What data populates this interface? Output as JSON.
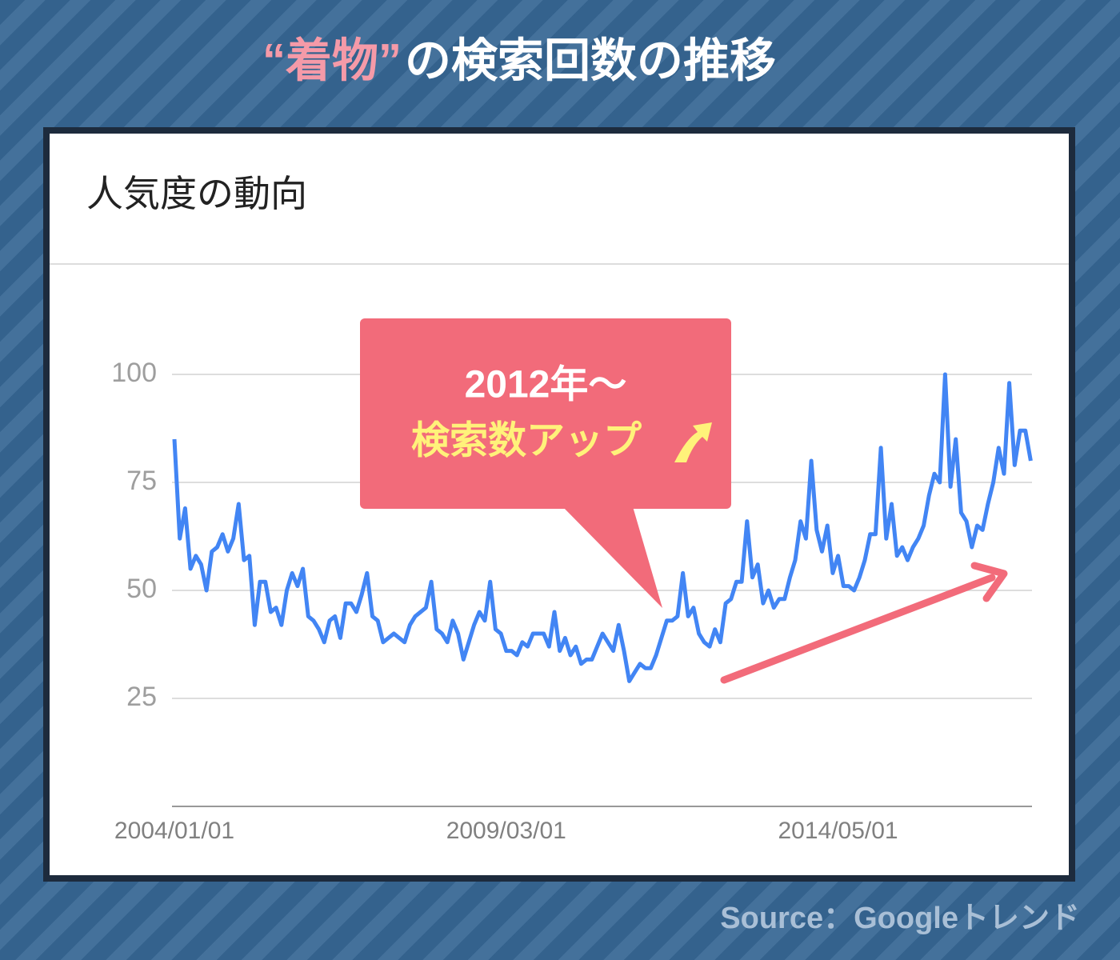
{
  "chart_data": {
    "type": "line",
    "title_highlight": "“着物”",
    "title": "の検索回数の推移",
    "panel_title": "人気度の動向",
    "annotations": [
      "2012年〜",
      "検索数アップ"
    ],
    "source": "Source：Googleトレンド",
    "color": "#4285f4",
    "ylim": [
      0,
      100
    ],
    "yticks": [
      25,
      50,
      75,
      100
    ],
    "grid": true,
    "xticks": [
      "2004/01/01",
      "2009/03/01",
      "2014/05/01"
    ],
    "x": [
      "2004/01/01",
      "2004/02/01",
      "2004/03/01",
      "2004/04/01",
      "2004/05/01",
      "2004/06/01",
      "2004/07/01",
      "2004/08/01",
      "2004/09/01",
      "2004/10/01",
      "2004/11/01",
      "2004/12/01",
      "2005/01/01",
      "2005/02/01",
      "2005/03/01",
      "2005/04/01",
      "2005/05/01",
      "2005/06/01",
      "2005/07/01",
      "2005/08/01",
      "2005/09/01",
      "2005/10/01",
      "2005/11/01",
      "2005/12/01",
      "2006/01/01",
      "2006/02/01",
      "2006/03/01",
      "2006/04/01",
      "2006/05/01",
      "2006/06/01",
      "2006/07/01",
      "2006/08/01",
      "2006/09/01",
      "2006/10/01",
      "2006/11/01",
      "2006/12/01",
      "2007/01/01",
      "2007/02/01",
      "2007/03/01",
      "2007/04/01",
      "2007/05/01",
      "2007/06/01",
      "2007/07/01",
      "2007/08/01",
      "2007/09/01",
      "2007/10/01",
      "2007/11/01",
      "2007/12/01",
      "2008/01/01",
      "2008/02/01",
      "2008/03/01",
      "2008/04/01",
      "2008/05/01",
      "2008/06/01",
      "2008/07/01",
      "2008/08/01",
      "2008/09/01",
      "2008/10/01",
      "2008/11/01",
      "2008/12/01",
      "2009/01/01",
      "2009/02/01",
      "2009/03/01",
      "2009/04/01",
      "2009/05/01",
      "2009/06/01",
      "2009/07/01",
      "2009/08/01",
      "2009/09/01",
      "2009/10/01",
      "2009/11/01",
      "2009/12/01",
      "2010/01/01",
      "2010/02/01",
      "2010/03/01",
      "2010/04/01",
      "2010/05/01",
      "2010/06/01",
      "2010/07/01",
      "2010/08/01",
      "2010/09/01",
      "2010/10/01",
      "2010/11/01",
      "2010/12/01",
      "2011/01/01",
      "2011/02/01",
      "2011/03/01",
      "2011/04/01",
      "2011/05/01",
      "2011/06/01",
      "2011/07/01",
      "2011/08/01",
      "2011/09/01",
      "2011/10/01",
      "2011/11/01",
      "2011/12/01",
      "2012/01/01",
      "2012/02/01",
      "2012/03/01",
      "2012/04/01",
      "2012/05/01",
      "2012/06/01",
      "2012/07/01",
      "2012/08/01",
      "2012/09/01",
      "2012/10/01",
      "2012/11/01",
      "2012/12/01",
      "2013/01/01",
      "2013/02/01",
      "2013/03/01",
      "2013/04/01",
      "2013/05/01",
      "2013/06/01",
      "2013/07/01",
      "2013/08/01",
      "2013/09/01",
      "2013/10/01",
      "2013/11/01",
      "2013/12/01",
      "2014/01/01",
      "2014/02/01",
      "2014/03/01",
      "2014/04/01",
      "2014/05/01",
      "2014/06/01",
      "2014/07/01",
      "2014/08/01",
      "2014/09/01",
      "2014/10/01",
      "2014/11/01",
      "2014/12/01",
      "2015/01/01",
      "2015/02/01",
      "2015/03/01",
      "2015/04/01",
      "2015/05/01",
      "2015/06/01",
      "2015/07/01",
      "2015/08/01",
      "2015/09/01",
      "2015/10/01",
      "2015/11/01",
      "2015/12/01",
      "2016/01/01",
      "2016/02/01",
      "2016/03/01",
      "2016/04/01",
      "2016/05/01",
      "2016/06/01",
      "2016/07/01",
      "2016/08/01",
      "2016/09/01",
      "2016/10/01",
      "2016/11/01",
      "2016/12/01",
      "2017/01/01",
      "2017/02/01",
      "2017/03/01",
      "2017/04/01",
      "2017/05/01"
    ],
    "values": [
      85,
      62,
      69,
      55,
      58,
      56,
      50,
      59,
      60,
      63,
      59,
      62,
      70,
      57,
      58,
      42,
      52,
      52,
      45,
      46,
      42,
      50,
      54,
      51,
      55,
      44,
      43,
      41,
      38,
      43,
      44,
      39,
      47,
      47,
      45,
      49,
      54,
      44,
      43,
      38,
      39,
      40,
      39,
      38,
      42,
      44,
      45,
      46,
      52,
      41,
      40,
      38,
      43,
      40,
      34,
      38,
      42,
      45,
      43,
      52,
      41,
      40,
      36,
      36,
      35,
      38,
      37,
      40,
      40,
      40,
      37,
      45,
      36,
      39,
      35,
      37,
      33,
      34,
      34,
      37,
      40,
      38,
      36,
      42,
      36,
      29,
      31,
      33,
      32,
      32,
      35,
      39,
      43,
      43,
      44,
      54,
      44,
      46,
      40,
      38,
      37,
      41,
      38,
      47,
      48,
      52,
      52,
      66,
      53,
      56,
      47,
      50,
      46,
      48,
      48,
      53,
      57,
      66,
      62,
      80,
      64,
      59,
      65,
      54,
      58,
      51,
      51,
      50,
      53,
      57,
      63,
      63,
      83,
      62,
      70,
      58,
      60,
      57,
      60,
      62,
      65,
      72,
      77,
      75,
      100,
      74,
      85,
      68,
      66,
      60,
      65,
      64,
      70,
      75,
      83,
      77,
      98,
      79,
      87,
      87,
      80
    ]
  }
}
